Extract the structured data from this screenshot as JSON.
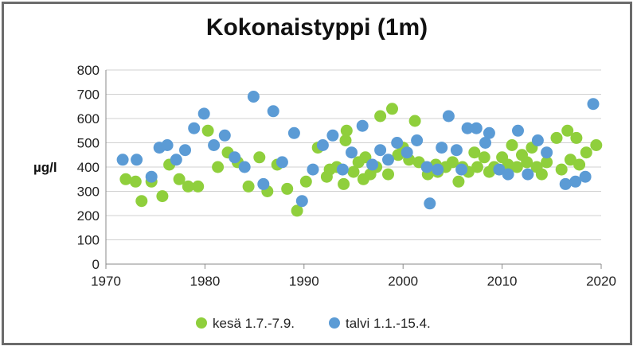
{
  "chart_data": {
    "type": "scatter",
    "title": "Kokonaistyppi (1m)",
    "ylabel": "µg/l",
    "xlim": [
      1970,
      2020
    ],
    "ylim": [
      0,
      800
    ],
    "x_ticks": [
      "1970",
      "1980",
      "1990",
      "2000",
      "2010",
      "2020"
    ],
    "y_ticks": [
      "0",
      "100",
      "200",
      "300",
      "400",
      "500",
      "600",
      "700",
      "800"
    ],
    "grid": "horizontal",
    "legend_position": "bottom",
    "series": [
      {
        "name": "kesä 1.7.-7.9.",
        "color": "#8fcf3c",
        "points": [
          [
            1972,
            350
          ],
          [
            1973,
            340
          ],
          [
            1973.6,
            260
          ],
          [
            1974.6,
            340
          ],
          [
            1975.7,
            280
          ],
          [
            1976.4,
            410
          ],
          [
            1977.4,
            350
          ],
          [
            1978.3,
            320
          ],
          [
            1979.3,
            320
          ],
          [
            1980.3,
            550
          ],
          [
            1981.3,
            400
          ],
          [
            1982.3,
            460
          ],
          [
            1983.3,
            420
          ],
          [
            1984.4,
            320
          ],
          [
            1985.5,
            440
          ],
          [
            1986.3,
            300
          ],
          [
            1987.3,
            410
          ],
          [
            1988.3,
            310
          ],
          [
            1989.3,
            220
          ],
          [
            1990.2,
            340
          ],
          [
            1991.4,
            480
          ],
          [
            1992.3,
            360
          ],
          [
            1992.6,
            390
          ],
          [
            1993.3,
            400
          ],
          [
            1994,
            330
          ],
          [
            1994.2,
            510
          ],
          [
            1994.3,
            550
          ],
          [
            1995,
            380
          ],
          [
            1995.5,
            420
          ],
          [
            1996,
            350
          ],
          [
            1996.2,
            440
          ],
          [
            1996.7,
            370
          ],
          [
            1997.3,
            400
          ],
          [
            1997.7,
            610
          ],
          [
            1998.5,
            370
          ],
          [
            1998.9,
            640
          ],
          [
            1999.5,
            450
          ],
          [
            2000,
            480
          ],
          [
            2000.6,
            430
          ],
          [
            2001.2,
            590
          ],
          [
            2001.6,
            420
          ],
          [
            2002.5,
            370
          ],
          [
            2003.3,
            410
          ],
          [
            2003.5,
            380
          ],
          [
            2004.3,
            400
          ],
          [
            2005,
            420
          ],
          [
            2005.6,
            340
          ],
          [
            2006,
            400
          ],
          [
            2006.6,
            380
          ],
          [
            2007.2,
            460
          ],
          [
            2007.5,
            400
          ],
          [
            2008.2,
            440
          ],
          [
            2008.7,
            380
          ],
          [
            2009.2,
            400
          ],
          [
            2010,
            440
          ],
          [
            2010.6,
            410
          ],
          [
            2011,
            490
          ],
          [
            2011.5,
            400
          ],
          [
            2012,
            450
          ],
          [
            2012.5,
            420
          ],
          [
            2013,
            480
          ],
          [
            2013.5,
            400
          ],
          [
            2014,
            370
          ],
          [
            2014.5,
            420
          ],
          [
            2015.5,
            520
          ],
          [
            2016,
            390
          ],
          [
            2016.6,
            550
          ],
          [
            2016.9,
            430
          ],
          [
            2017.5,
            520
          ],
          [
            2017.8,
            410
          ],
          [
            2018.5,
            460
          ],
          [
            2019.5,
            490
          ]
        ]
      },
      {
        "name": "talvi 1.1.-15.4.",
        "color": "#5b9bd5",
        "points": [
          [
            1971.7,
            430
          ],
          [
            1973.1,
            430
          ],
          [
            1974.6,
            360
          ],
          [
            1975.4,
            480
          ],
          [
            1976.2,
            490
          ],
          [
            1977.1,
            430
          ],
          [
            1978,
            470
          ],
          [
            1978.9,
            560
          ],
          [
            1979.9,
            620
          ],
          [
            1980.9,
            490
          ],
          [
            1982,
            530
          ],
          [
            1983,
            440
          ],
          [
            1984,
            400
          ],
          [
            1984.9,
            690
          ],
          [
            1985.9,
            330
          ],
          [
            1986.9,
            630
          ],
          [
            1987.8,
            420
          ],
          [
            1989,
            540
          ],
          [
            1989.8,
            260
          ],
          [
            1990.9,
            390
          ],
          [
            1991.9,
            490
          ],
          [
            1992.9,
            530
          ],
          [
            1993.9,
            390
          ],
          [
            1994.8,
            460
          ],
          [
            1995.9,
            570
          ],
          [
            1996.9,
            410
          ],
          [
            1997.7,
            470
          ],
          [
            1998.5,
            430
          ],
          [
            1999.4,
            500
          ],
          [
            2000.4,
            460
          ],
          [
            2001.4,
            510
          ],
          [
            2002.4,
            400
          ],
          [
            2002.7,
            250
          ],
          [
            2003.5,
            390
          ],
          [
            2003.9,
            480
          ],
          [
            2004.6,
            610
          ],
          [
            2005.4,
            470
          ],
          [
            2005.9,
            390
          ],
          [
            2006.5,
            560
          ],
          [
            2007.4,
            560
          ],
          [
            2008.3,
            500
          ],
          [
            2008.7,
            540
          ],
          [
            2009.7,
            390
          ],
          [
            2010.6,
            370
          ],
          [
            2011.6,
            550
          ],
          [
            2012.6,
            370
          ],
          [
            2013.6,
            510
          ],
          [
            2014.5,
            460
          ],
          [
            2016.4,
            330
          ],
          [
            2017.4,
            340
          ],
          [
            2018.4,
            360
          ],
          [
            2019.2,
            660
          ]
        ]
      }
    ]
  }
}
